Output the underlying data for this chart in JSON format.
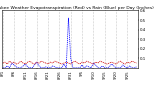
{
  "title": "Milwaukee Weather Evapotranspiration (Red) vs Rain (Blue) per Day (Inches)",
  "background_color": "#ffffff",
  "grid_color": "#999999",
  "ylim": [
    0,
    0.6
  ],
  "yticks": [
    0.1,
    0.2,
    0.3,
    0.4,
    0.5,
    0.6
  ],
  "n_days": 60,
  "rain_color": "#0000ff",
  "et_color": "#cc0000",
  "spine_color": "#000000",
  "rain_data": [
    0.0,
    0.0,
    0.02,
    0.0,
    0.05,
    0.03,
    0.01,
    0.0,
    0.0,
    0.02,
    0.04,
    0.01,
    0.0,
    0.0,
    0.03,
    0.06,
    0.02,
    0.0,
    0.0,
    0.01,
    0.0,
    0.0,
    0.02,
    0.01,
    0.0,
    0.0,
    0.0,
    0.04,
    0.0,
    0.52,
    0.1,
    0.0,
    0.0,
    0.0,
    0.0,
    0.03,
    0.0,
    0.02,
    0.01,
    0.0,
    0.05,
    0.03,
    0.0,
    0.0,
    0.02,
    0.0,
    0.0,
    0.01,
    0.04,
    0.02,
    0.0,
    0.0,
    0.0,
    0.03,
    0.01,
    0.0,
    0.02,
    0.0,
    0.0,
    0.01
  ],
  "et_data": [
    0.05,
    0.06,
    0.04,
    0.07,
    0.05,
    0.06,
    0.04,
    0.05,
    0.07,
    0.05,
    0.04,
    0.06,
    0.07,
    0.05,
    0.04,
    0.06,
    0.05,
    0.07,
    0.06,
    0.05,
    0.04,
    0.06,
    0.05,
    0.07,
    0.06,
    0.05,
    0.04,
    0.05,
    0.06,
    0.05,
    0.04,
    0.06,
    0.07,
    0.05,
    0.04,
    0.06,
    0.05,
    0.07,
    0.06,
    0.05,
    0.04,
    0.06,
    0.05,
    0.07,
    0.06,
    0.05,
    0.04,
    0.05,
    0.06,
    0.05,
    0.04,
    0.06,
    0.07,
    0.05,
    0.04,
    0.06,
    0.05,
    0.07,
    0.06,
    0.05
  ],
  "title_fontsize": 3.2,
  "tick_fontsize": 2.8,
  "line_width": 0.55,
  "month_labels": [
    "8/1",
    "8/6",
    "8/11",
    "8/16",
    "8/21",
    "8/26",
    "8/31",
    "9/5",
    "9/10",
    "9/15",
    "9/20",
    "9/25"
  ],
  "xtick_positions": [
    0,
    5,
    10,
    15,
    20,
    25,
    30,
    35,
    40,
    45,
    50,
    55
  ]
}
